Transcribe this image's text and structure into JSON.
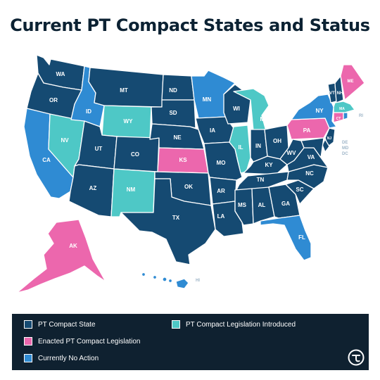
{
  "title": "Current PT Compact States and Status",
  "colors": {
    "compact": "#154a72",
    "enacted": "#ec67ad",
    "no_action": "#2f8bd3",
    "introduced": "#4ec8c6",
    "legend_bg": "#0f2130"
  },
  "legend": {
    "compact": "PT Compact State",
    "introduced": "PT Compact Legislation Introduced",
    "enacted": "Enacted PT Compact Legislation",
    "no_action": "Currently No Action"
  },
  "states": {
    "WA": {
      "label": "WA",
      "status": "compact"
    },
    "OR": {
      "label": "OR",
      "status": "compact"
    },
    "CA": {
      "label": "CA",
      "status": "no_action"
    },
    "NV": {
      "label": "NV",
      "status": "introduced"
    },
    "ID": {
      "label": "ID",
      "status": "no_action"
    },
    "MT": {
      "label": "MT",
      "status": "compact"
    },
    "WY": {
      "label": "WY",
      "status": "introduced"
    },
    "UT": {
      "label": "UT",
      "status": "compact"
    },
    "AZ": {
      "label": "AZ",
      "status": "compact"
    },
    "CO": {
      "label": "CO",
      "status": "compact"
    },
    "NM": {
      "label": "NM",
      "status": "introduced"
    },
    "ND": {
      "label": "ND",
      "status": "compact"
    },
    "SD": {
      "label": "SD",
      "status": "compact"
    },
    "NE": {
      "label": "NE",
      "status": "compact"
    },
    "KS": {
      "label": "KS",
      "status": "enacted"
    },
    "OK": {
      "label": "OK",
      "status": "compact"
    },
    "TX": {
      "label": "TX",
      "status": "compact"
    },
    "MN": {
      "label": "MN",
      "status": "no_action"
    },
    "IA": {
      "label": "IA",
      "status": "compact"
    },
    "MO": {
      "label": "MO",
      "status": "compact"
    },
    "AR": {
      "label": "AR",
      "status": "compact"
    },
    "LA": {
      "label": "LA",
      "status": "compact"
    },
    "WI": {
      "label": "WI",
      "status": "compact"
    },
    "IL": {
      "label": "IL",
      "status": "introduced"
    },
    "MI": {
      "label": "MI",
      "status": "introduced"
    },
    "IN": {
      "label": "IN",
      "status": "compact"
    },
    "OH": {
      "label": "OH",
      "status": "compact"
    },
    "KY": {
      "label": "KY",
      "status": "compact"
    },
    "TN": {
      "label": "TN",
      "status": "compact"
    },
    "MS": {
      "label": "MS",
      "status": "compact"
    },
    "AL": {
      "label": "AL",
      "status": "compact"
    },
    "GA": {
      "label": "GA",
      "status": "compact"
    },
    "FL": {
      "label": "FL",
      "status": "no_action"
    },
    "SC": {
      "label": "SC",
      "status": "compact"
    },
    "NC": {
      "label": "NC",
      "status": "compact"
    },
    "VA": {
      "label": "VA",
      "status": "compact"
    },
    "WV": {
      "label": "WV",
      "status": "compact"
    },
    "PA": {
      "label": "PA",
      "status": "enacted"
    },
    "NY": {
      "label": "NY",
      "status": "no_action"
    },
    "VT": {
      "label": "VT",
      "status": "compact"
    },
    "NH": {
      "label": "NH",
      "status": "compact"
    },
    "ME": {
      "label": "ME",
      "status": "enacted"
    },
    "MA": {
      "label": "MA",
      "status": "introduced"
    },
    "CT": {
      "label": "CT",
      "status": "enacted"
    },
    "RI": {
      "label": "RI",
      "status": "no_action"
    },
    "NJ": {
      "label": "NJ",
      "status": "compact"
    },
    "DE": {
      "label": "DE",
      "status": "compact"
    },
    "MD": {
      "label": "MD",
      "status": "compact"
    },
    "DC": {
      "label": "DC",
      "status": "compact"
    },
    "AK": {
      "label": "AK",
      "status": "enacted"
    },
    "HI": {
      "label": "HI",
      "status": "no_action"
    }
  }
}
